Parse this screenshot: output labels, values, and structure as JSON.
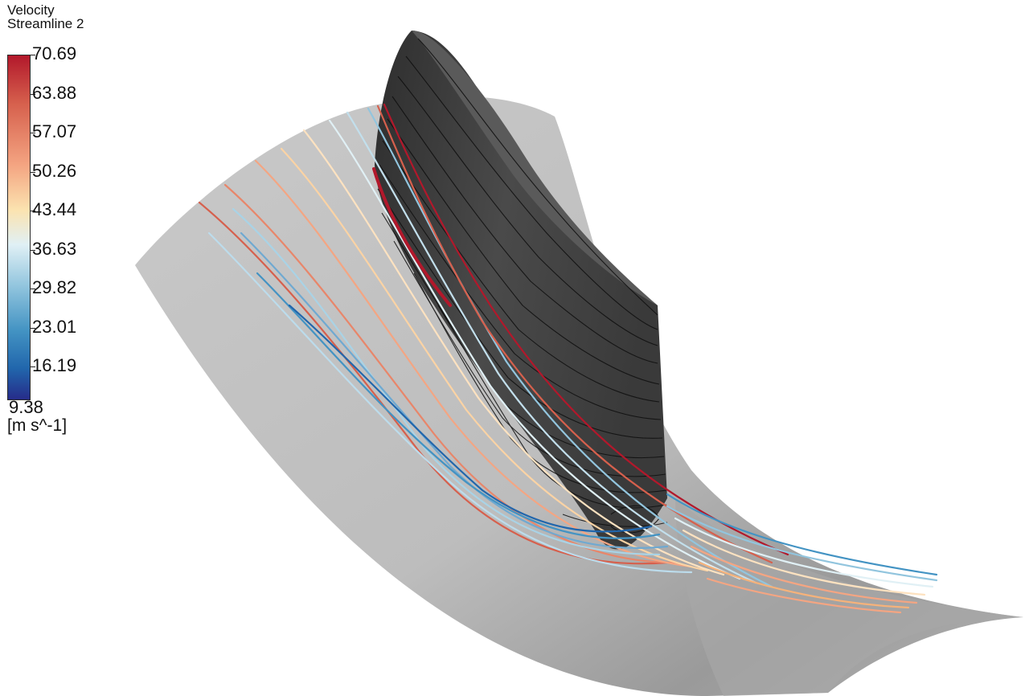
{
  "legend": {
    "title": "Velocity",
    "subtitle": "Streamline 2",
    "ticks": [
      "70.69",
      "63.88",
      "57.07",
      "50.26",
      "43.44",
      "36.63",
      "29.82",
      "23.01",
      "16.19"
    ],
    "min_label": "9.38",
    "units": "[m s^-1]",
    "colormap": [
      "#b2182b",
      "#d6604d",
      "#f4a582",
      "#fddbc7",
      "#e0f0f5",
      "#92c5de",
      "#4393c3",
      "#2166ac",
      "#262c8a"
    ]
  },
  "chart_data": {
    "type": "streamline",
    "quantity": "Velocity",
    "units": "m s^-1",
    "range": [
      9.38,
      70.69
    ]
  }
}
